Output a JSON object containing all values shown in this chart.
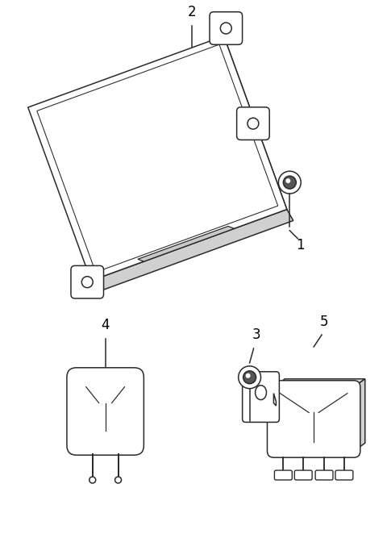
{
  "background_color": "#ffffff",
  "line_color": "#2a2a2a",
  "label_color": "#000000",
  "lw": 1.1
}
